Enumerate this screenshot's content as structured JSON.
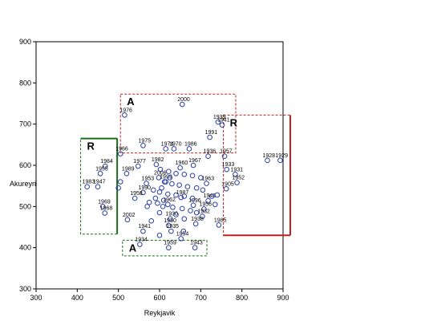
{
  "chart_data": {
    "type": "scatter",
    "xlabel": "Reykjavik",
    "ylabel": "Akureyri",
    "xlim": [
      300,
      900
    ],
    "ylim": [
      300,
      900
    ],
    "xticks": [
      300,
      400,
      500,
      600,
      700,
      800,
      900
    ],
    "yticks": [
      300,
      400,
      500,
      600,
      700,
      800,
      900
    ],
    "grid": false,
    "marker_color": "#2a3fa8",
    "points": [
      {
        "label": "2000",
        "x": 655,
        "y": 748
      },
      {
        "label": "1976",
        "x": 515,
        "y": 722
      },
      {
        "label": "1939",
        "x": 742,
        "y": 705
      },
      {
        "label": "1941",
        "x": 752,
        "y": 698
      },
      {
        "label": "1991",
        "x": 722,
        "y": 668
      },
      {
        "label": "1975",
        "x": 560,
        "y": 648
      },
      {
        "label": "1974",
        "x": 615,
        "y": 640
      },
      {
        "label": "1970",
        "x": 635,
        "y": 640
      },
      {
        "label": "1986",
        "x": 672,
        "y": 640
      },
      {
        "label": "1966",
        "x": 505,
        "y": 628
      },
      {
        "label": "1936",
        "x": 718,
        "y": 622
      },
      {
        "label": "1957",
        "x": 758,
        "y": 622
      },
      {
        "label": "1928",
        "x": 862,
        "y": 612
      },
      {
        "label": "1929",
        "x": 893,
        "y": 612
      },
      {
        "label": "1984",
        "x": 468,
        "y": 598
      },
      {
        "label": "1982",
        "x": 592,
        "y": 602
      },
      {
        "label": "1977",
        "x": 548,
        "y": 598
      },
      {
        "label": "1967",
        "x": 682,
        "y": 600
      },
      {
        "label": "1960",
        "x": 650,
        "y": 594
      },
      {
        "label": "1933",
        "x": 763,
        "y": 590
      },
      {
        "label": "1955",
        "x": 456,
        "y": 580
      },
      {
        "label": "1989",
        "x": 520,
        "y": 580
      },
      {
        "label": "1931",
        "x": 784,
        "y": 578
      },
      {
        "label": "2006",
        "x": 598,
        "y": 570
      },
      {
        "label": "1952",
        "x": 788,
        "y": 558
      },
      {
        "label": "1983",
        "x": 424,
        "y": 548
      },
      {
        "label": "1947",
        "x": 450,
        "y": 548
      },
      {
        "label": "1953",
        "x": 568,
        "y": 556
      },
      {
        "label": "1999",
        "x": 612,
        "y": 560
      },
      {
        "label": "1963",
        "x": 714,
        "y": 556
      },
      {
        "label": "1905",
        "x": 762,
        "y": 543
      },
      {
        "label": "1990",
        "x": 560,
        "y": 534
      },
      {
        "label": "1987",
        "x": 652,
        "y": 522
      },
      {
        "label": "1946",
        "x": 718,
        "y": 514
      },
      {
        "label": "1958",
        "x": 540,
        "y": 520
      },
      {
        "label": "1969",
        "x": 462,
        "y": 500
      },
      {
        "label": "1962",
        "x": 620,
        "y": 505
      },
      {
        "label": "1996",
        "x": 682,
        "y": 503
      },
      {
        "label": "1956",
        "x": 708,
        "y": 494
      },
      {
        "label": "1968",
        "x": 467,
        "y": 484
      },
      {
        "label": "1932",
        "x": 704,
        "y": 476
      },
      {
        "label": "2002",
        "x": 522,
        "y": 468
      },
      {
        "label": "1930",
        "x": 626,
        "y": 470
      },
      {
        "label": "1938",
        "x": 688,
        "y": 458
      },
      {
        "label": "1950",
        "x": 622,
        "y": 454
      },
      {
        "label": "1985",
        "x": 744,
        "y": 455
      },
      {
        "label": "1941",
        "x": 560,
        "y": 440
      },
      {
        "label": "1935",
        "x": 628,
        "y": 440
      },
      {
        "label": "1954",
        "x": 652,
        "y": 422
      },
      {
        "label": "1934",
        "x": 552,
        "y": 408
      },
      {
        "label": "1959",
        "x": 622,
        "y": 400
      },
      {
        "label": "1943",
        "x": 686,
        "y": 400
      },
      {
        "x": 602,
        "y": 590
      },
      {
        "x": 622,
        "y": 585
      },
      {
        "x": 640,
        "y": 580
      },
      {
        "x": 660,
        "y": 578
      },
      {
        "x": 680,
        "y": 575
      },
      {
        "x": 700,
        "y": 570
      },
      {
        "x": 615,
        "y": 560
      },
      {
        "x": 630,
        "y": 555
      },
      {
        "x": 648,
        "y": 552
      },
      {
        "x": 668,
        "y": 548
      },
      {
        "x": 690,
        "y": 545
      },
      {
        "x": 705,
        "y": 540
      },
      {
        "x": 585,
        "y": 540
      },
      {
        "x": 600,
        "y": 535
      },
      {
        "x": 620,
        "y": 530
      },
      {
        "x": 640,
        "y": 528
      },
      {
        "x": 660,
        "y": 525
      },
      {
        "x": 680,
        "y": 520
      },
      {
        "x": 575,
        "y": 510
      },
      {
        "x": 595,
        "y": 508
      },
      {
        "x": 608,
        "y": 500
      },
      {
        "x": 632,
        "y": 498
      },
      {
        "x": 655,
        "y": 495
      },
      {
        "x": 675,
        "y": 490
      },
      {
        "x": 590,
        "y": 520
      },
      {
        "x": 610,
        "y": 515
      },
      {
        "x": 570,
        "y": 500
      },
      {
        "x": 600,
        "y": 485
      },
      {
        "x": 640,
        "y": 480
      },
      {
        "x": 660,
        "y": 470
      },
      {
        "x": 690,
        "y": 485
      },
      {
        "x": 605,
        "y": 545
      },
      {
        "x": 625,
        "y": 570
      },
      {
        "x": 505,
        "y": 560
      },
      {
        "x": 500,
        "y": 545
      },
      {
        "x": 727,
        "y": 525
      },
      {
        "x": 740,
        "y": 528
      },
      {
        "x": 735,
        "y": 505
      },
      {
        "x": 658,
        "y": 440
      },
      {
        "x": 600,
        "y": 430
      },
      {
        "x": 580,
        "y": 465
      }
    ],
    "regions": [
      {
        "label": "A",
        "color": "#c02020",
        "dash": true,
        "x0": 505,
        "x1": 785,
        "y0": 630,
        "y1": 773
      },
      {
        "label": "R",
        "color": "#c02020",
        "dash": true,
        "x0": 755,
        "x1": 920,
        "y0": 430,
        "y1": 722
      },
      {
        "label": "R",
        "color": "#1a6e1a",
        "dash": true,
        "x0": 408,
        "x1": 497,
        "y0": 433,
        "y1": 665
      },
      {
        "label": "A",
        "color": "#1a6e1a",
        "dash": true,
        "x0": 510,
        "x1": 715,
        "y0": 380,
        "y1": 418
      }
    ]
  }
}
